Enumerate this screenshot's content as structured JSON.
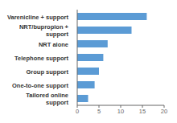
{
  "chart_data": {
    "type": "bar",
    "orientation": "horizontal",
    "categories": [
      "Varenicline + support",
      "NRT/bupropion +\nsupport",
      "NRT alone",
      "Telephone support",
      "Group support",
      "One-to-one support",
      "Tailored online\nsupport"
    ],
    "values": [
      16.0,
      12.5,
      7.0,
      6.0,
      5.0,
      4.0,
      2.5
    ],
    "color": "#5b9bd5",
    "xlim": [
      0,
      20
    ],
    "xticks": [
      0,
      5,
      10,
      15,
      20
    ]
  }
}
